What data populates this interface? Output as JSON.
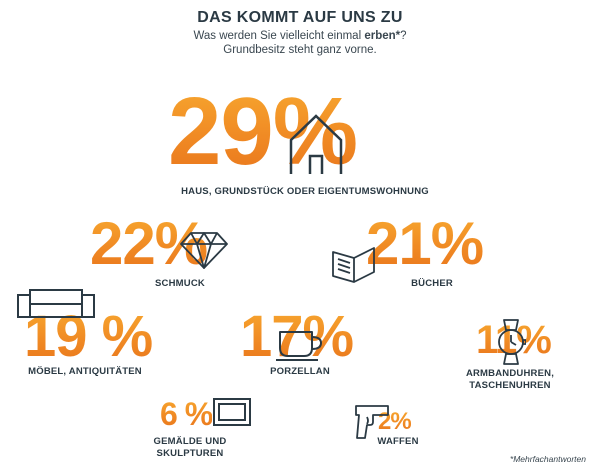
{
  "header": {
    "title": "DAS KOMMT AUF UNS ZU",
    "subtitle_pre": "Was werden Sie vielleicht einmal ",
    "subtitle_bold": "erben*",
    "subtitle_post": "?",
    "subtitle_line2": "Grundbesitz steht ganz vorne."
  },
  "footnote": "*Mehrfachantworten",
  "chart_data": {
    "type": "infographic",
    "title": "DAS KOMMT AUF UNS ZU",
    "unit": "%",
    "categories": [
      {
        "label": "HAUS, GRUNDSTÜCK ODER EIGENTUMSWOHNUNG",
        "value": 29,
        "display": "29%",
        "icon": "house-icon"
      },
      {
        "label": "SCHMUCK",
        "value": 22,
        "display": "22%",
        "icon": "diamond-icon"
      },
      {
        "label": "BÜCHER",
        "value": 21,
        "display": "21%",
        "icon": "book-icon"
      },
      {
        "label": "MÖBEL, ANTIQUITÄTEN",
        "value": 19,
        "display": "19 %",
        "icon": "sofa-icon"
      },
      {
        "label": "PORZELLAN",
        "value": 17,
        "display": "17%",
        "icon": "cup-icon"
      },
      {
        "label": "ARMBANDUHREN, TASCHENUHREN",
        "value": 11,
        "display": "11%",
        "icon": "wristwatch-icon"
      },
      {
        "label": "GEMÄLDE UND SKULPTUREN",
        "value": 6,
        "display": "6 %",
        "icon": "picture-frame-icon"
      },
      {
        "label": "WAFFEN",
        "value": 2,
        "display": "2%",
        "icon": "pistol-icon"
      }
    ]
  }
}
